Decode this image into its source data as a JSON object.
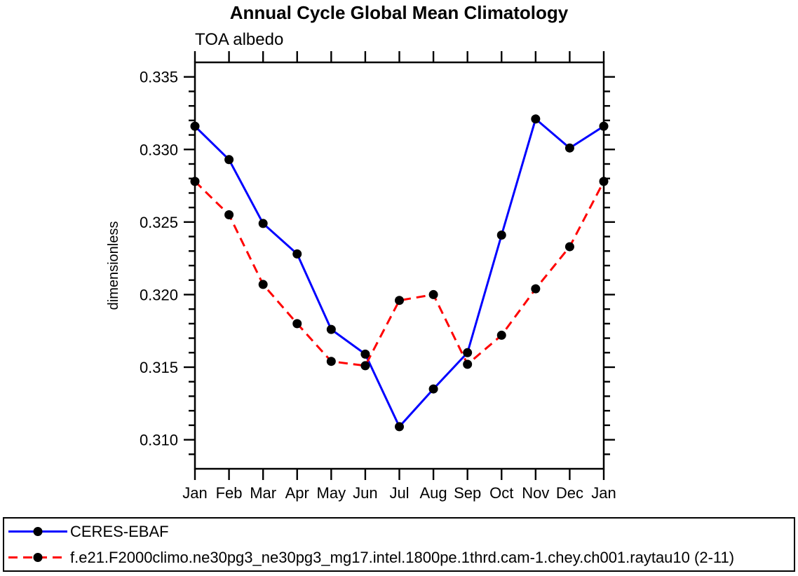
{
  "chart_data": {
    "type": "line",
    "title": "Annual Cycle Global Mean Climatology",
    "subtitle": "TOA albedo",
    "ylabel": "dimensionless",
    "xlabel": "",
    "x_tick_labels": [
      "Jan",
      "Feb",
      "Mar",
      "Apr",
      "May",
      "Jun",
      "Jul",
      "Aug",
      "Sep",
      "Oct",
      "Nov",
      "Dec",
      "Jan"
    ],
    "ylim": [
      0.308,
      0.336
    ],
    "y_major_tick_labels": [
      "0.310",
      "0.315",
      "0.320",
      "0.325",
      "0.330",
      "0.335"
    ],
    "y_minor_step": 0.001,
    "grid": false,
    "legend_position": "bottom-left-box",
    "frame_color": "#000000",
    "series": [
      {
        "name": "CERES-EBAF",
        "color": "#0000ff",
        "line_style": "solid",
        "marker": "filled-circle",
        "marker_color": "#000000",
        "values": [
          0.3316,
          0.3293,
          0.3249,
          0.3228,
          0.3176,
          0.3159,
          0.3109,
          0.3135,
          0.316,
          0.3241,
          0.3321,
          0.3301,
          0.3316
        ]
      },
      {
        "name": "f.e21.F2000climo.ne30pg3_ne30pg3_mg17.intel.1800pe.1thrd.cam-1.chey.ch001.raytau10 (2-11)",
        "color": "#ff0000",
        "line_style": "dashed",
        "marker": "filled-circle",
        "marker_color": "#000000",
        "values": [
          0.3278,
          0.3255,
          0.3207,
          0.318,
          0.3154,
          0.3151,
          0.3196,
          0.32,
          0.3152,
          0.3172,
          0.3204,
          0.3233,
          0.3278
        ]
      }
    ]
  }
}
